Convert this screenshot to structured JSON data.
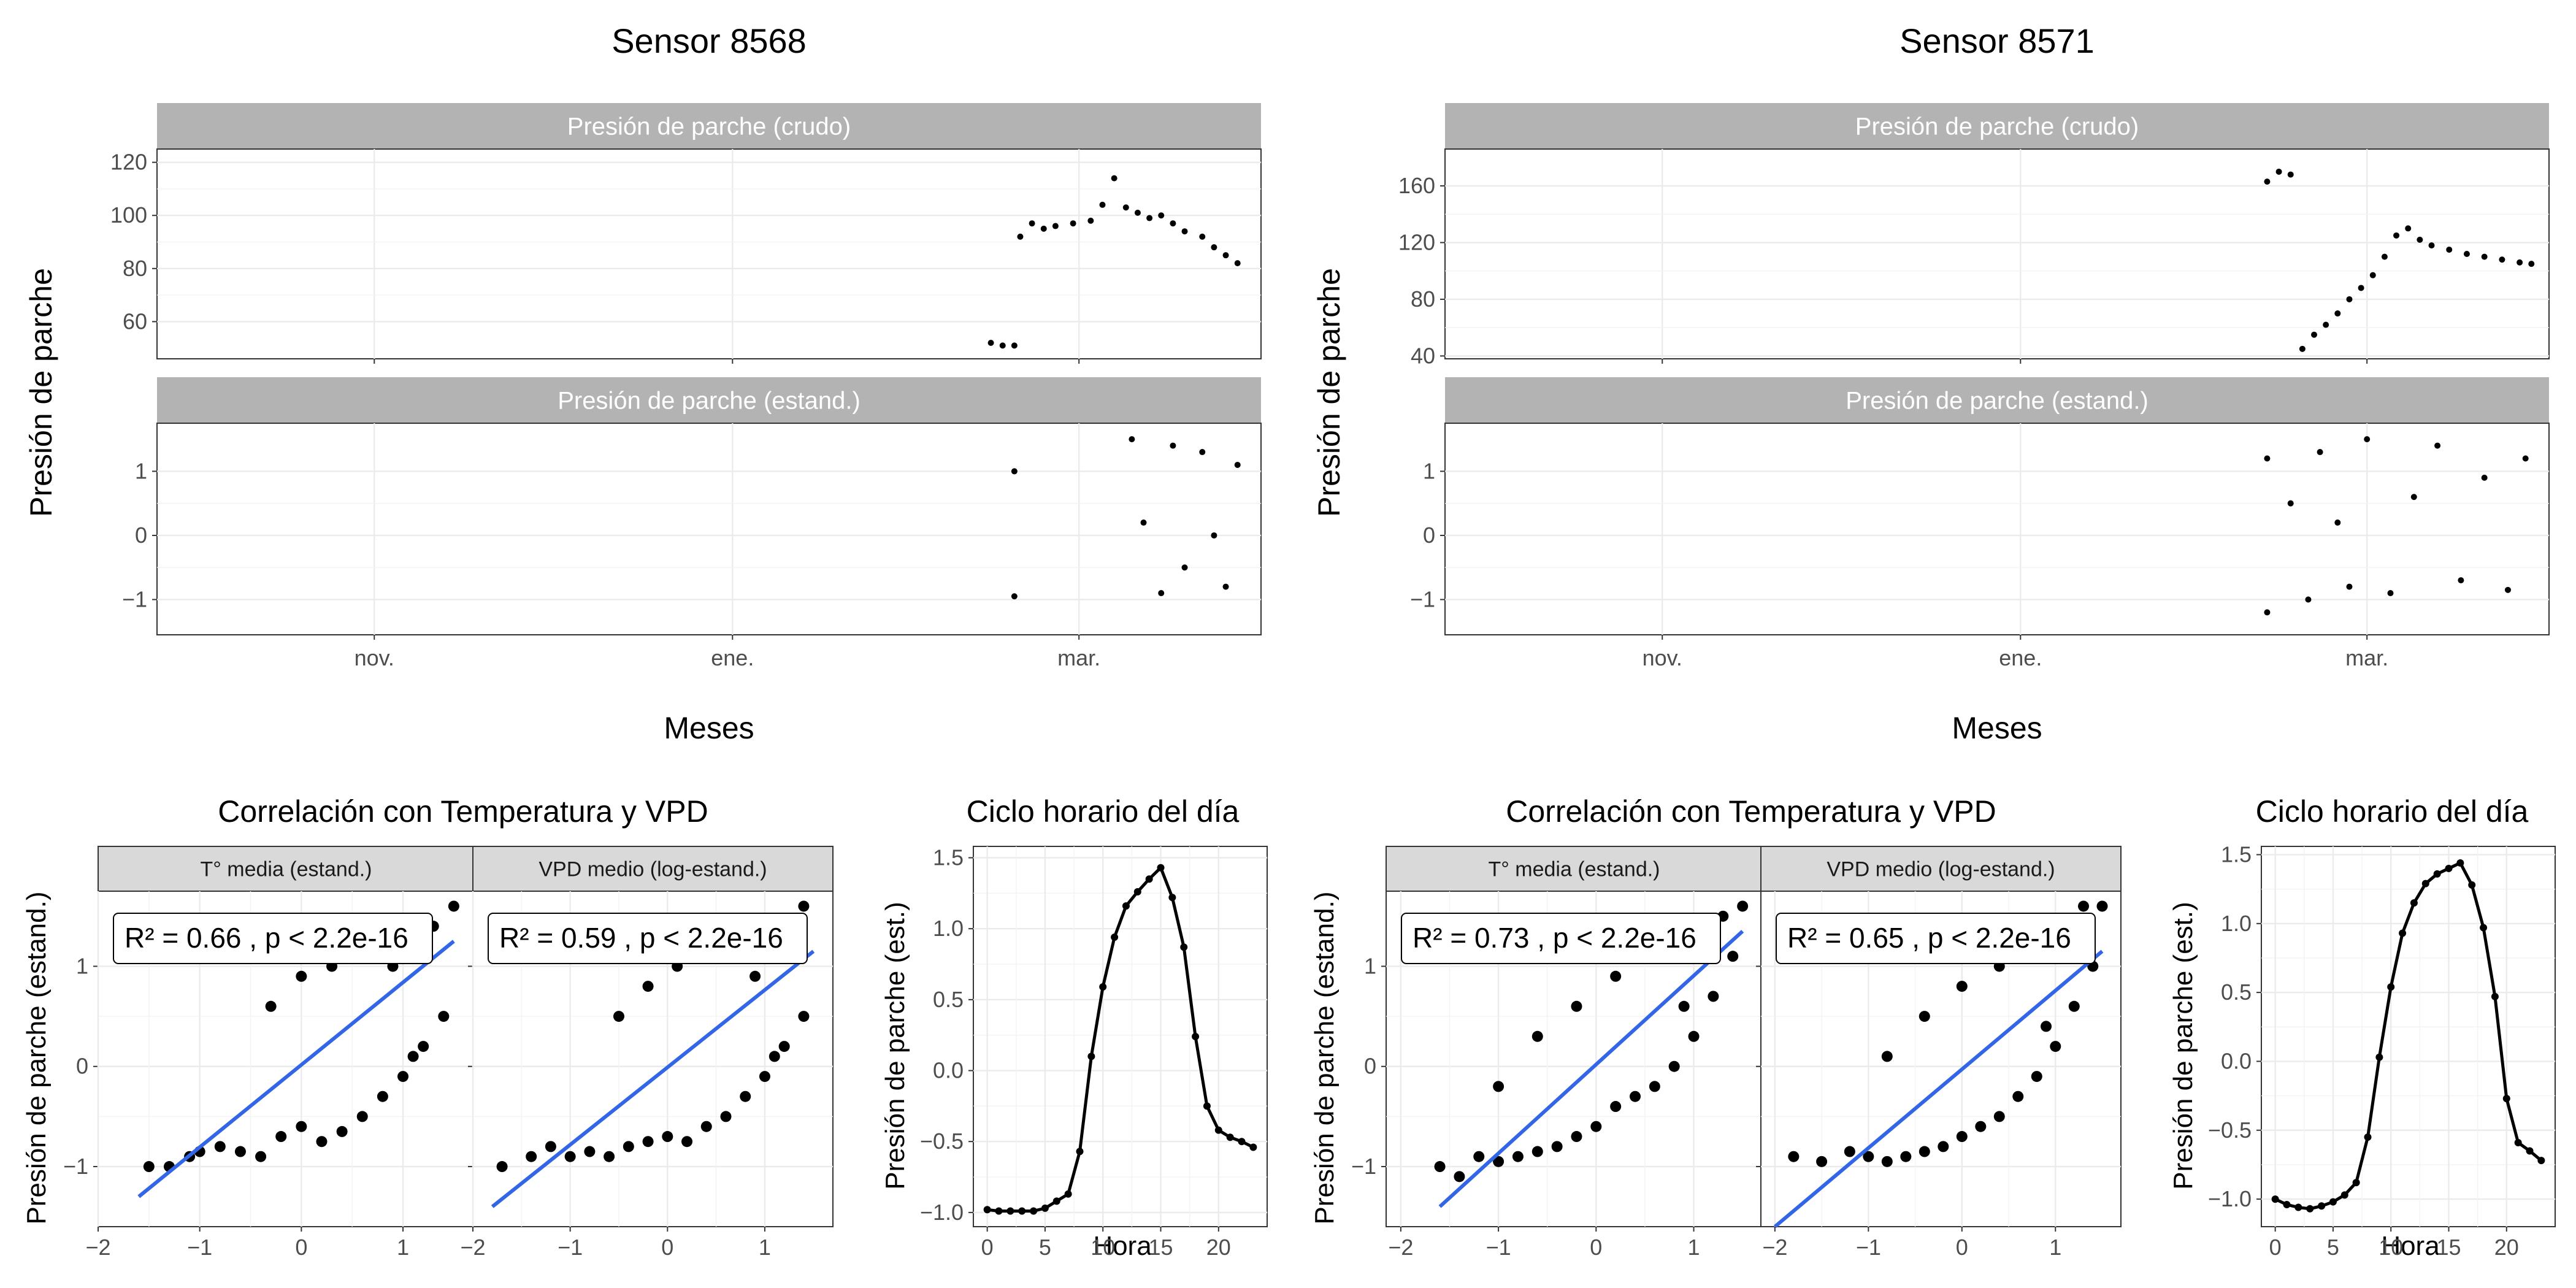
{
  "figure": {
    "panels": [
      {
        "sensor_title": "Sensor 8568",
        "ts_ylabel": "Presión de parche",
        "ts_xlabel": "Meses",
        "corr_title": "Correlación con Temperatura y VPD",
        "corr_ylabel": "Presión de parche (estand.)",
        "hour_title": "Ciclo horario del día",
        "hour_ylabel": "Presión de parche (est.)",
        "hour_xlabel": "Hora"
      },
      {
        "sensor_title": "Sensor 8571",
        "ts_ylabel": "Presión de parche",
        "ts_xlabel": "Meses",
        "corr_title": "Correlación con Temperatura y VPD",
        "corr_ylabel": "Presión de parche (estand.)",
        "hour_title": "Ciclo horario del día",
        "hour_ylabel": "Presión de parche (est.)",
        "hour_xlabel": "Hora"
      }
    ],
    "colors": {
      "points": "#000000",
      "fit_line": "#3366e6",
      "strip_dark": "#b3b3b3",
      "strip_light": "#d9d9d9"
    }
  },
  "chart_data": [
    {
      "type": "scatter",
      "title": "Sensor 8568",
      "facet": "Presión de parche (crudo)",
      "xlabel": "Meses",
      "ylabel": "Presión de parche",
      "x_ticks": [
        "nov.",
        "ene.",
        "mar."
      ],
      "xlim": [
        "2024-09-25",
        "2025-04-01"
      ],
      "ylim": [
        46,
        125
      ],
      "y_ticks": [
        60,
        80,
        100,
        120
      ],
      "series": [
        {
          "x": [
            "2025-02-14",
            "2025-02-16",
            "2025-02-18",
            "2025-02-19",
            "2025-02-21",
            "2025-02-23",
            "2025-02-25",
            "2025-02-28",
            "2025-03-03",
            "2025-03-05",
            "2025-03-07",
            "2025-03-09",
            "2025-03-11",
            "2025-03-13",
            "2025-03-15",
            "2025-03-17",
            "2025-03-19",
            "2025-03-22",
            "2025-03-24",
            "2025-03-26",
            "2025-03-28"
          ],
          "y": [
            52,
            51,
            51,
            92,
            97,
            95,
            96,
            97,
            98,
            104,
            114,
            103,
            101,
            99,
            100,
            97,
            94,
            92,
            88,
            85,
            82
          ]
        }
      ]
    },
    {
      "type": "scatter",
      "title": "Sensor 8568",
      "facet": "Presión de parche (estand.)",
      "xlabel": "Meses",
      "ylabel": "Presión de parche",
      "x_ticks": [
        "nov.",
        "ene.",
        "mar."
      ],
      "xlim": [
        "2024-09-25",
        "2025-04-01"
      ],
      "ylim": [
        -1.55,
        1.75
      ],
      "y_ticks": [
        -1,
        0,
        1
      ],
      "series": [
        {
          "x": [
            "2025-02-18",
            "2025-02-18",
            "2025-03-10",
            "2025-03-12",
            "2025-03-15",
            "2025-03-17",
            "2025-03-19",
            "2025-03-22",
            "2025-03-24",
            "2025-03-26",
            "2025-03-28"
          ],
          "y": [
            1.0,
            -0.95,
            1.5,
            0.2,
            -0.9,
            1.4,
            -0.5,
            1.3,
            0.0,
            -0.8,
            1.1
          ]
        }
      ]
    },
    {
      "type": "scatter",
      "title": "Correlación con Temperatura y VPD",
      "facet": "T° media (estand.)",
      "ylabel": "Presión de parche (estand.)",
      "annotation": "R² = 0.66 , p < 2.2e-16",
      "xlim": [
        -2.0,
        1.7
      ],
      "ylim": [
        -1.6,
        1.75
      ],
      "x_ticks": [
        -2,
        -1,
        0,
        1
      ],
      "y_ticks": [
        -1,
        0,
        1
      ],
      "fit": {
        "x": [
          -1.6,
          1.5
        ],
        "y": [
          -1.3,
          1.25
        ]
      },
      "series": [
        {
          "x": [
            -1.5,
            -1.3,
            -1.1,
            -1.0,
            -0.8,
            -0.6,
            -0.4,
            -0.2,
            0.0,
            0.2,
            0.4,
            0.6,
            0.8,
            1.0,
            1.2,
            1.4,
            -0.3,
            0.0,
            0.3,
            0.6,
            1.0,
            1.3,
            1.5,
            0.9,
            1.1
          ],
          "y": [
            -1.0,
            -1.0,
            -0.9,
            -0.85,
            -0.8,
            -0.85,
            -0.9,
            -0.7,
            -0.6,
            -0.75,
            -0.65,
            -0.5,
            -0.3,
            -0.1,
            0.2,
            0.5,
            0.6,
            0.9,
            1.0,
            1.1,
            1.2,
            1.4,
            1.6,
            1.0,
            0.1
          ]
        }
      ]
    },
    {
      "type": "scatter",
      "title": "Correlación con Temperatura y VPD",
      "facet": "VPD medio (log-estand.)",
      "ylabel": "Presión de parche (estand.)",
      "annotation": "R² = 0.59 , p < 2.2e-16",
      "xlim": [
        -2.0,
        1.7
      ],
      "ylim": [
        -1.6,
        1.75
      ],
      "x_ticks": [
        -2,
        -1,
        0,
        1
      ],
      "y_ticks": [
        -1,
        0,
        1
      ],
      "fit": {
        "x": [
          -1.8,
          1.5
        ],
        "y": [
          -1.4,
          1.15
        ]
      },
      "series": [
        {
          "x": [
            -1.7,
            -1.4,
            -1.2,
            -1.0,
            -0.8,
            -0.6,
            -0.4,
            -0.2,
            0.0,
            0.2,
            0.4,
            0.6,
            0.8,
            1.0,
            1.2,
            1.4,
            -0.5,
            -0.2,
            0.1,
            0.4,
            0.8,
            1.1,
            1.4,
            0.9,
            1.1
          ],
          "y": [
            -1.0,
            -0.9,
            -0.8,
            -0.9,
            -0.85,
            -0.9,
            -0.8,
            -0.75,
            -0.7,
            -0.75,
            -0.6,
            -0.5,
            -0.3,
            -0.1,
            0.2,
            0.5,
            0.5,
            0.8,
            1.0,
            1.1,
            1.2,
            1.4,
            1.6,
            0.9,
            0.1
          ]
        }
      ]
    },
    {
      "type": "line",
      "title": "Ciclo horario del día",
      "xlabel": "Hora",
      "ylabel": "Presión de parche (est.)",
      "xlim": [
        -1.2,
        24.2
      ],
      "ylim": [
        -1.1,
        1.58
      ],
      "x_ticks": [
        0,
        5,
        10,
        15,
        20
      ],
      "y_ticks": [
        -1.0,
        -0.5,
        0.0,
        0.5,
        1.0,
        1.5
      ],
      "x": [
        0,
        1,
        2,
        3,
        4,
        5,
        6,
        7,
        8,
        9,
        10,
        11,
        12,
        13,
        14,
        15,
        16,
        17,
        18,
        19,
        20,
        21,
        22,
        23
      ],
      "y": [
        -0.98,
        -0.99,
        -0.99,
        -0.99,
        -0.99,
        -0.97,
        -0.92,
        -0.87,
        -0.57,
        0.1,
        0.59,
        0.94,
        1.16,
        1.26,
        1.35,
        1.43,
        1.22,
        0.87,
        0.24,
        -0.25,
        -0.42,
        -0.47,
        -0.5,
        -0.54
      ]
    },
    {
      "type": "scatter",
      "title": "Sensor 8571",
      "facet": "Presión de parche (crudo)",
      "xlabel": "Meses",
      "ylabel": "Presión de parche",
      "x_ticks": [
        "nov.",
        "ene.",
        "mar."
      ],
      "xlim": [
        "2024-09-25",
        "2025-04-01"
      ],
      "ylim": [
        38,
        186
      ],
      "y_ticks": [
        40,
        80,
        120,
        160
      ],
      "series": [
        {
          "x": [
            "2025-02-12",
            "2025-02-14",
            "2025-02-16",
            "2025-02-18",
            "2025-02-20",
            "2025-02-22",
            "2025-02-24",
            "2025-02-26",
            "2025-02-28",
            "2025-03-02",
            "2025-03-04",
            "2025-03-06",
            "2025-03-08",
            "2025-03-10",
            "2025-03-12",
            "2025-03-15",
            "2025-03-18",
            "2025-03-21",
            "2025-03-24",
            "2025-03-27",
            "2025-03-29"
          ],
          "y": [
            163,
            170,
            168,
            45,
            55,
            62,
            70,
            80,
            88,
            97,
            110,
            125,
            130,
            122,
            118,
            115,
            112,
            110,
            108,
            106,
            105
          ]
        }
      ]
    },
    {
      "type": "scatter",
      "title": "Sensor 8571",
      "facet": "Presión de parche (estand.)",
      "xlabel": "Meses",
      "ylabel": "Presión de parche",
      "x_ticks": [
        "nov.",
        "ene.",
        "mar."
      ],
      "xlim": [
        "2024-09-25",
        "2025-04-01"
      ],
      "ylim": [
        -1.55,
        1.75
      ],
      "y_ticks": [
        -1,
        0,
        1
      ],
      "series": [
        {
          "x": [
            "2025-02-12",
            "2025-02-12",
            "2025-02-16",
            "2025-02-19",
            "2025-02-21",
            "2025-02-24",
            "2025-02-26",
            "2025-03-01",
            "2025-03-05",
            "2025-03-09",
            "2025-03-13",
            "2025-03-17",
            "2025-03-21",
            "2025-03-25",
            "2025-03-28"
          ],
          "y": [
            1.2,
            -1.2,
            0.5,
            -1.0,
            1.3,
            0.2,
            -0.8,
            1.5,
            -0.9,
            0.6,
            1.4,
            -0.7,
            0.9,
            -0.85,
            1.2
          ]
        }
      ]
    },
    {
      "type": "scatter",
      "title": "Correlación con Temperatura y VPD",
      "facet": "T° media (estand.)",
      "ylabel": "Presión de parche (estand.)",
      "annotation": "R² = 0.73 , p < 2.2e-16",
      "xlim": [
        -2.15,
        1.7
      ],
      "ylim": [
        -1.6,
        1.75
      ],
      "x_ticks": [
        -2,
        -1,
        0,
        1
      ],
      "y_ticks": [
        -1,
        0,
        1
      ],
      "fit": {
        "x": [
          -1.6,
          1.5
        ],
        "y": [
          -1.4,
          1.35
        ]
      },
      "series": [
        {
          "x": [
            -1.6,
            -1.4,
            -1.2,
            -1.0,
            -0.8,
            -0.6,
            -0.4,
            -0.2,
            0.0,
            0.2,
            0.4,
            0.6,
            0.8,
            1.0,
            1.2,
            1.4,
            -1.0,
            -0.6,
            -0.2,
            0.2,
            0.6,
            1.0,
            1.3,
            1.5,
            0.9
          ],
          "y": [
            -1.0,
            -1.1,
            -0.9,
            -0.95,
            -0.9,
            -0.85,
            -0.8,
            -0.7,
            -0.6,
            -0.4,
            -0.3,
            -0.2,
            0.0,
            0.3,
            0.7,
            1.1,
            -0.2,
            0.3,
            0.6,
            0.9,
            1.1,
            1.3,
            1.5,
            1.6,
            0.6
          ]
        }
      ]
    },
    {
      "type": "scatter",
      "title": "Correlación con Temperatura y VPD",
      "facet": "VPD medio (log-estand.)",
      "ylabel": "Presión de parche (estand.)",
      "annotation": "R² = 0.65 , p < 2.2e-16",
      "xlim": [
        -2.15,
        1.7
      ],
      "ylim": [
        -1.6,
        1.75
      ],
      "x_ticks": [
        -2,
        -1,
        0,
        1
      ],
      "y_ticks": [
        -1,
        0,
        1
      ],
      "fit": {
        "x": [
          -2.0,
          1.5
        ],
        "y": [
          -1.6,
          1.15
        ]
      },
      "series": [
        {
          "x": [
            -1.8,
            -1.5,
            -1.2,
            -1.0,
            -0.8,
            -0.6,
            -0.4,
            -0.2,
            0.0,
            0.2,
            0.4,
            0.6,
            0.8,
            1.0,
            1.2,
            1.4,
            -0.8,
            -0.4,
            0.0,
            0.4,
            0.7,
            1.0,
            1.3,
            1.5,
            0.9
          ],
          "y": [
            -0.9,
            -0.95,
            -0.85,
            -0.9,
            -0.95,
            -0.9,
            -0.85,
            -0.8,
            -0.7,
            -0.6,
            -0.5,
            -0.3,
            -0.1,
            0.2,
            0.6,
            1.0,
            0.1,
            0.5,
            0.8,
            1.0,
            1.2,
            1.4,
            1.6,
            1.6,
            0.4
          ]
        }
      ]
    },
    {
      "type": "line",
      "title": "Ciclo horario del día",
      "xlabel": "Hora",
      "ylabel": "Presión de parche (est.)",
      "xlim": [
        -1.2,
        24.2
      ],
      "ylim": [
        -1.2,
        1.56
      ],
      "x_ticks": [
        0,
        5,
        10,
        15,
        20
      ],
      "y_ticks": [
        -1.0,
        -0.5,
        0.0,
        0.5,
        1.0,
        1.5
      ],
      "x": [
        0,
        1,
        2,
        3,
        4,
        5,
        6,
        7,
        8,
        9,
        10,
        11,
        12,
        13,
        14,
        15,
        16,
        17,
        18,
        19,
        20,
        21,
        22,
        23
      ],
      "y": [
        -1.0,
        -1.04,
        -1.06,
        -1.07,
        -1.05,
        -1.02,
        -0.97,
        -0.88,
        -0.55,
        0.03,
        0.54,
        0.93,
        1.15,
        1.29,
        1.36,
        1.4,
        1.44,
        1.28,
        0.97,
        0.47,
        -0.27,
        -0.59,
        -0.65,
        -0.72
      ]
    }
  ]
}
